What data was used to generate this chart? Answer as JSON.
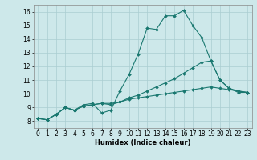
{
  "xlabel": "Humidex (Indice chaleur)",
  "xlim": [
    -0.5,
    23.5
  ],
  "ylim": [
    7.5,
    16.5
  ],
  "xticks": [
    0,
    1,
    2,
    3,
    4,
    5,
    6,
    7,
    8,
    9,
    10,
    11,
    12,
    13,
    14,
    15,
    16,
    17,
    18,
    19,
    20,
    21,
    22,
    23
  ],
  "yticks": [
    8,
    9,
    10,
    11,
    12,
    13,
    14,
    15,
    16
  ],
  "background_color": "#cde8ea",
  "grid_color": "#aacdd1",
  "line_color": "#1a7870",
  "line1_y": [
    8.2,
    8.1,
    8.5,
    9.0,
    8.8,
    9.2,
    9.3,
    8.6,
    8.8,
    10.2,
    11.4,
    12.9,
    14.8,
    14.7,
    15.7,
    15.7,
    16.1,
    15.0,
    14.1,
    12.4,
    11.0,
    10.4,
    10.1,
    10.1
  ],
  "line2_y": [
    8.2,
    8.1,
    8.5,
    9.0,
    8.8,
    9.1,
    9.2,
    9.3,
    9.3,
    9.4,
    9.6,
    9.7,
    9.8,
    9.9,
    10.0,
    10.1,
    10.2,
    10.3,
    10.4,
    10.5,
    10.4,
    10.3,
    10.2,
    10.1
  ],
  "line3_y": [
    8.2,
    8.1,
    8.5,
    9.0,
    8.8,
    9.1,
    9.2,
    9.3,
    9.2,
    9.4,
    9.7,
    9.9,
    10.2,
    10.5,
    10.8,
    11.1,
    11.5,
    11.9,
    12.3,
    12.4,
    11.0,
    10.4,
    10.2,
    10.1
  ],
  "marker": "D",
  "marker_size": 2.0,
  "linewidth": 0.8,
  "label_fontsize": 6,
  "tick_fontsize": 5.5
}
